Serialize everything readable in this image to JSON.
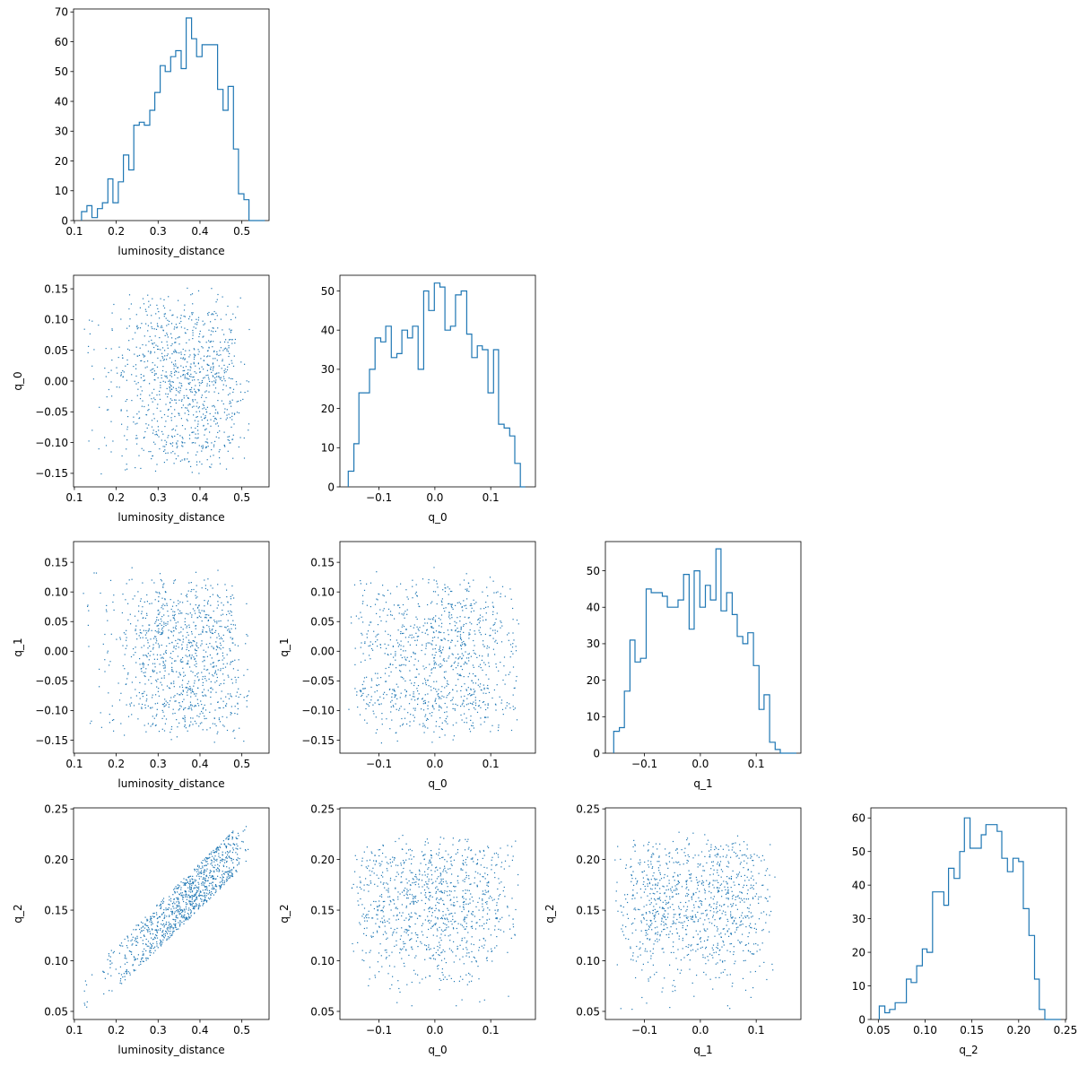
{
  "chart_data": {
    "type": "corner",
    "color": "#1f77b4",
    "parameters": [
      "luminosity_distance",
      "q_0",
      "q_1",
      "q_2"
    ],
    "histograms": [
      {
        "type": "histogram",
        "xlabel": "luminosity_distance",
        "xlim": [
          0.098,
          0.565
        ],
        "ylim": [
          0,
          71
        ],
        "xticks": [
          "0.1",
          "0.2",
          "0.3",
          "0.4",
          "0.5"
        ],
        "yticks": [
          "0",
          "10",
          "20",
          "30",
          "40",
          "50",
          "60",
          "70"
        ],
        "edges": [
          0.117,
          0.13,
          0.142,
          0.155,
          0.167,
          0.18,
          0.192,
          0.205,
          0.217,
          0.23,
          0.242,
          0.255,
          0.267,
          0.28,
          0.292,
          0.305,
          0.317,
          0.33,
          0.342,
          0.355,
          0.367,
          0.38,
          0.392,
          0.405,
          0.417,
          0.43,
          0.442,
          0.455,
          0.467,
          0.48,
          0.492,
          0.505,
          0.517,
          0.53,
          0.542,
          0.555
        ],
        "counts": [
          3,
          5,
          1,
          4,
          6,
          14,
          6,
          13,
          22,
          17,
          32,
          33,
          32,
          37,
          43,
          52,
          50,
          55,
          57,
          51,
          68,
          61,
          55,
          59,
          59,
          59,
          44,
          37,
          45,
          24,
          9,
          7,
          0,
          0,
          0
        ]
      },
      {
        "type": "histogram",
        "xlabel": "q_0",
        "xlim": [
          -0.17,
          0.18
        ],
        "ylim": [
          0,
          54
        ],
        "xticks": [
          "−0.1",
          "0.0",
          "0.1"
        ],
        "yticks": [
          "0",
          "10",
          "20",
          "30",
          "40",
          "50"
        ],
        "edges": [
          -0.155,
          -0.145,
          -0.136,
          -0.126,
          -0.117,
          -0.107,
          -0.097,
          -0.088,
          -0.078,
          -0.068,
          -0.059,
          -0.049,
          -0.04,
          -0.03,
          -0.02,
          -0.011,
          -0.001,
          0.009,
          0.018,
          0.028,
          0.037,
          0.047,
          0.057,
          0.066,
          0.076,
          0.085,
          0.095,
          0.105,
          0.114,
          0.124,
          0.134,
          0.143,
          0.153,
          0.162
        ],
        "counts": [
          4,
          11,
          24,
          24,
          30,
          38,
          37,
          41,
          33,
          34,
          40,
          38,
          41,
          30,
          50,
          45,
          52,
          51,
          40,
          41,
          49,
          50,
          39,
          33,
          36,
          35,
          24,
          35,
          16,
          15,
          13,
          6,
          0
        ]
      },
      {
        "type": "histogram",
        "xlabel": "q_1",
        "xlim": [
          -0.17,
          0.18
        ],
        "ylim": [
          0,
          58
        ],
        "xticks": [
          "−0.1",
          "0.0",
          "0.1"
        ],
        "yticks": [
          "0",
          "10",
          "20",
          "30",
          "40",
          "50"
        ],
        "edges": [
          -0.155,
          -0.145,
          -0.136,
          -0.126,
          -0.117,
          -0.107,
          -0.097,
          -0.088,
          -0.078,
          -0.068,
          -0.059,
          -0.049,
          -0.04,
          -0.03,
          -0.02,
          -0.011,
          -0.001,
          0.009,
          0.018,
          0.028,
          0.037,
          0.047,
          0.057,
          0.066,
          0.076,
          0.085,
          0.095,
          0.105,
          0.114,
          0.124,
          0.134,
          0.143,
          0.153,
          0.162,
          0.172
        ],
        "counts": [
          6,
          7,
          17,
          31,
          25,
          26,
          45,
          44,
          44,
          43,
          40,
          40,
          42,
          49,
          34,
          50,
          40,
          46,
          42,
          56,
          39,
          44,
          38,
          32,
          30,
          33,
          24,
          12,
          16,
          3,
          1,
          0,
          0,
          0
        ]
      },
      {
        "type": "histogram",
        "xlabel": "q_2",
        "xlim": [
          0.042,
          0.251
        ],
        "ylim": [
          0,
          63
        ],
        "xticks": [
          "0.05",
          "0.10",
          "0.15",
          "0.20",
          "0.25"
        ],
        "yticks": [
          "0",
          "10",
          "20",
          "30",
          "40",
          "50",
          "60"
        ],
        "edges": [
          0.051,
          0.057,
          0.062,
          0.068,
          0.074,
          0.08,
          0.085,
          0.091,
          0.097,
          0.102,
          0.108,
          0.114,
          0.12,
          0.125,
          0.131,
          0.137,
          0.142,
          0.148,
          0.154,
          0.16,
          0.165,
          0.171,
          0.177,
          0.182,
          0.188,
          0.194,
          0.2,
          0.205,
          0.211,
          0.217,
          0.222,
          0.228,
          0.234,
          0.24,
          0.245
        ],
        "counts": [
          4,
          2,
          3,
          5,
          5,
          12,
          11,
          16,
          21,
          20,
          38,
          38,
          34,
          45,
          42,
          50,
          60,
          51,
          51,
          55,
          58,
          58,
          56,
          48,
          44,
          48,
          47,
          33,
          25,
          12,
          3,
          0,
          0,
          0
        ]
      }
    ],
    "scatters": [
      {
        "type": "scatter",
        "x_param": "luminosity_distance",
        "y_param": "q_0",
        "xlabel": "luminosity_distance",
        "ylabel": "q_0",
        "xlim": [
          0.098,
          0.565
        ],
        "ylim": [
          -0.172,
          0.172
        ],
        "xticks": [
          "0.1",
          "0.2",
          "0.3",
          "0.4",
          "0.5"
        ],
        "yticks": [
          "−0.15",
          "−0.10",
          "−0.05",
          "0.00",
          "0.05",
          "0.10",
          "0.15"
        ],
        "point_count": 1000,
        "dependence": "none"
      },
      {
        "type": "scatter",
        "x_param": "luminosity_distance",
        "y_param": "q_1",
        "xlabel": "luminosity_distance",
        "ylabel": "q_1",
        "xlim": [
          0.098,
          0.565
        ],
        "ylim": [
          -0.172,
          0.185
        ],
        "xticks": [
          "0.1",
          "0.2",
          "0.3",
          "0.4",
          "0.5"
        ],
        "yticks": [
          "−0.15",
          "−0.10",
          "−0.05",
          "0.00",
          "0.05",
          "0.10",
          "0.15"
        ],
        "point_count": 1000,
        "dependence": "none"
      },
      {
        "type": "scatter",
        "x_param": "q_0",
        "y_param": "q_1",
        "xlabel": "q_0",
        "ylabel": "q_1",
        "xlim": [
          -0.17,
          0.18
        ],
        "ylim": [
          -0.172,
          0.185
        ],
        "xticks": [
          "−0.1",
          "0.0",
          "0.1"
        ],
        "yticks": [
          "−0.15",
          "−0.10",
          "−0.05",
          "0.00",
          "0.05",
          "0.10",
          "0.15"
        ],
        "point_count": 1000,
        "dependence": "none"
      },
      {
        "type": "scatter",
        "x_param": "luminosity_distance",
        "y_param": "q_2",
        "xlabel": "luminosity_distance",
        "ylabel": "q_2",
        "xlim": [
          0.098,
          0.565
        ],
        "ylim": [
          0.042,
          0.251
        ],
        "xticks": [
          "0.1",
          "0.2",
          "0.3",
          "0.4",
          "0.5"
        ],
        "yticks": [
          "0.05",
          "0.10",
          "0.15",
          "0.20",
          "0.25"
        ],
        "point_count": 1000,
        "dependence": "linear",
        "fit": {
          "slope": 0.4,
          "intercept": 0.015
        }
      },
      {
        "type": "scatter",
        "x_param": "q_0",
        "y_param": "q_2",
        "xlabel": "q_0",
        "ylabel": "q_2",
        "xlim": [
          -0.17,
          0.18
        ],
        "ylim": [
          0.042,
          0.251
        ],
        "xticks": [
          "−0.1",
          "0.0",
          "0.1"
        ],
        "yticks": [
          "0.05",
          "0.10",
          "0.15",
          "0.20",
          "0.25"
        ],
        "point_count": 1000,
        "dependence": "none"
      },
      {
        "type": "scatter",
        "x_param": "q_1",
        "y_param": "q_2",
        "xlabel": "q_1",
        "ylabel": "q_2",
        "xlim": [
          -0.17,
          0.18
        ],
        "ylim": [
          0.042,
          0.251
        ],
        "xticks": [
          "−0.1",
          "0.0",
          "0.1"
        ],
        "yticks": [
          "0.05",
          "0.10",
          "0.15",
          "0.20",
          "0.25"
        ],
        "point_count": 1000,
        "dependence": "none"
      }
    ]
  }
}
